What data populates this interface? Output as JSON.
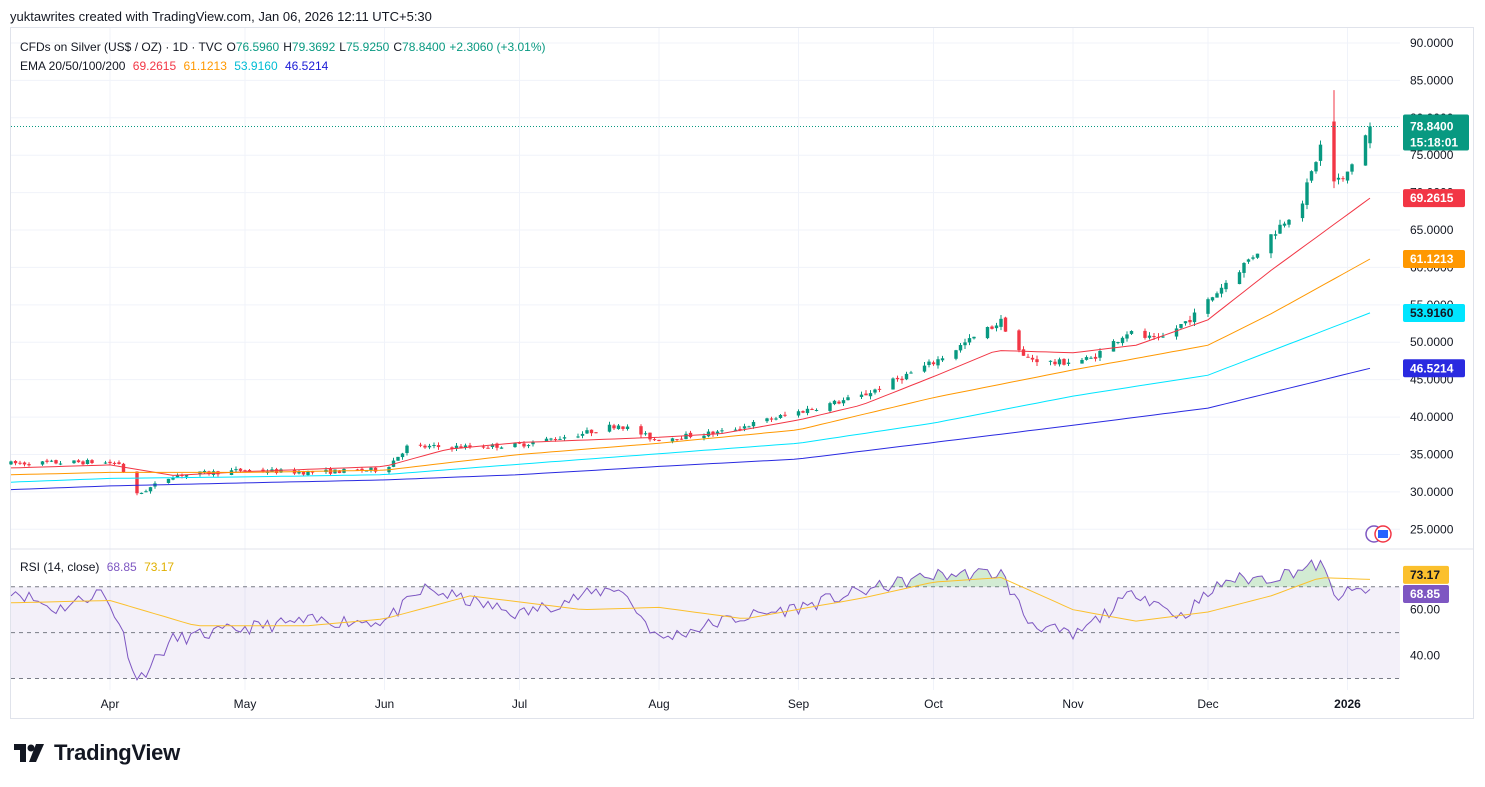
{
  "header": {
    "attribution": "yuktawrites created with TradingView.com, Jan 06, 2026 12:11 UTC+5:30"
  },
  "legend": {
    "symbol": "CFDs on Silver (US$ / OZ) · 1D · TVC",
    "open_label": "O",
    "open": "76.5960",
    "high_label": "H",
    "high": "79.3692",
    "low_label": "L",
    "low": "75.9250",
    "close_label": "C",
    "close": "78.8400",
    "change": "+2.3060 (+3.01%)",
    "ema_label": "EMA 20/50/100/200",
    "ema20": "69.2615",
    "ema50": "61.1213",
    "ema100": "53.9160",
    "ema200": "46.5214"
  },
  "rsi_legend": {
    "label": "RSI (14, close)",
    "rsi": "68.85",
    "rsi_ma": "73.17"
  },
  "price_badge": {
    "price": "78.8400",
    "countdown": "15:18:01"
  },
  "footer": {
    "brand": "TradingView"
  },
  "colors": {
    "up": "#089981",
    "down": "#f23645",
    "ema20": "#f23645",
    "ema50": "#ff9800",
    "ema100": "#00e5ff",
    "ema200": "#2a2ae0",
    "rsi": "#7e57c2",
    "rsi_ma": "#fbc02d"
  },
  "chart_data": [
    {
      "type": "candlestick",
      "title": "CFDs on Silver (US$ / OZ) · 1D · TVC",
      "x_ticks": [
        "Apr",
        "May",
        "Jun",
        "Jul",
        "Aug",
        "Sep",
        "Oct",
        "Nov",
        "Dec",
        "2026"
      ],
      "y_ticks": [
        "25.0000",
        "30.0000",
        "35.0000",
        "40.0000",
        "45.0000",
        "50.0000",
        "55.0000",
        "60.0000",
        "65.0000",
        "70.0000",
        "75.0000",
        "80.0000",
        "85.0000",
        "90.0000"
      ],
      "ylim": [
        22.5,
        92
      ],
      "grid": true,
      "series": [
        {
          "name": "EMA 20",
          "key_dates": [
            "2025-03-10",
            "2025-04-01",
            "2025-04-15",
            "2025-05-01",
            "2025-06-01",
            "2025-06-15",
            "2025-07-01",
            "2025-08-01",
            "2025-08-15",
            "2025-09-01",
            "2025-09-15",
            "2025-10-01",
            "2025-10-15",
            "2025-11-01",
            "2025-11-15",
            "2025-12-01",
            "2025-12-15",
            "2026-01-06"
          ],
          "values": [
            33.2,
            33.6,
            32.2,
            32.7,
            33.4,
            35.7,
            36.6,
            37.3,
            37.8,
            39.6,
            41.6,
            45.4,
            48.9,
            48.6,
            49.6,
            53.0,
            59.6,
            69.26
          ]
        },
        {
          "name": "EMA 50",
          "key_dates": [
            "2025-03-10",
            "2025-04-01",
            "2025-05-01",
            "2025-06-01",
            "2025-07-01",
            "2025-08-01",
            "2025-09-01",
            "2025-10-01",
            "2025-11-01",
            "2025-12-01",
            "2025-12-15",
            "2026-01-06"
          ],
          "values": [
            32.3,
            32.6,
            32.6,
            32.9,
            35.0,
            36.5,
            38.3,
            42.6,
            46.3,
            49.6,
            53.8,
            61.12
          ]
        },
        {
          "name": "EMA 100",
          "key_dates": [
            "2025-03-10",
            "2025-04-01",
            "2025-05-01",
            "2025-06-01",
            "2025-07-01",
            "2025-08-01",
            "2025-09-01",
            "2025-10-01",
            "2025-11-01",
            "2025-12-01",
            "2026-01-06"
          ],
          "values": [
            31.3,
            31.8,
            32.0,
            32.3,
            33.7,
            35.1,
            36.5,
            39.2,
            42.8,
            45.6,
            53.92
          ]
        },
        {
          "name": "EMA 200",
          "key_dates": [
            "2025-03-10",
            "2025-04-01",
            "2025-05-01",
            "2025-06-01",
            "2025-07-01",
            "2025-08-01",
            "2025-09-01",
            "2025-10-01",
            "2025-11-01",
            "2025-12-01",
            "2026-01-06"
          ],
          "values": [
            30.3,
            30.8,
            31.2,
            31.6,
            32.3,
            33.4,
            34.4,
            36.6,
            38.9,
            41.2,
            46.52
          ]
        }
      ],
      "price_path": {
        "key_dates": [
          "2025-03-10",
          "2025-03-28",
          "2025-04-03",
          "2025-04-07",
          "2025-04-15",
          "2025-05-01",
          "2025-05-15",
          "2025-06-01",
          "2025-06-06",
          "2025-06-20",
          "2025-07-01",
          "2025-07-15",
          "2025-07-23",
          "2025-07-31",
          "2025-08-15",
          "2025-09-01",
          "2025-09-15",
          "2025-10-01",
          "2025-10-16",
          "2025-10-21",
          "2025-10-28",
          "2025-11-05",
          "2025-11-13",
          "2025-11-20",
          "2025-11-28",
          "2025-12-05",
          "2025-12-12",
          "2025-12-22",
          "2025-12-26",
          "2025-12-29",
          "2025-12-31",
          "2026-01-06"
        ],
        "values": [
          33.8,
          34.0,
          33.8,
          29.6,
          32.2,
          32.9,
          32.6,
          33.0,
          36.0,
          36.0,
          36.3,
          37.8,
          39.0,
          37.0,
          38.0,
          40.7,
          42.8,
          47.3,
          52.8,
          48.0,
          47.2,
          47.8,
          51.3,
          50.2,
          53.6,
          58.0,
          62.2,
          69.0,
          76.2,
          72.0,
          71.5,
          78.84
        ]
      },
      "last": {
        "open": 76.596,
        "high": 79.3692,
        "low": 75.925,
        "close": 78.84
      }
    },
    {
      "type": "line",
      "title": "RSI (14, close)",
      "y_ticks": [
        "40.00",
        "60.00"
      ],
      "ylim": [
        25,
        86
      ],
      "bands": [
        30,
        50,
        70
      ],
      "series": [
        {
          "name": "RSI",
          "key_dates": [
            "2025-03-10",
            "2025-03-20",
            "2025-03-30",
            "2025-04-03",
            "2025-04-07",
            "2025-04-15",
            "2025-05-01",
            "2025-05-15",
            "2025-06-01",
            "2025-06-10",
            "2025-07-01",
            "2025-07-15",
            "2025-07-23",
            "2025-08-01",
            "2025-08-15",
            "2025-09-01",
            "2025-09-15",
            "2025-10-01",
            "2025-10-16",
            "2025-10-22",
            "2025-11-01",
            "2025-11-15",
            "2025-11-25",
            "2025-12-05",
            "2025-12-15",
            "2025-12-26",
            "2025-12-29",
            "2026-01-06"
          ],
          "values": [
            69,
            60,
            68,
            55,
            29,
            47,
            52,
            55,
            55,
            69,
            58,
            66,
            70,
            47,
            55,
            61,
            68,
            75,
            76,
            55,
            48,
            68,
            57,
            73,
            74,
            80,
            66,
            68.85
          ]
        },
        {
          "name": "RSI MA",
          "key_dates": [
            "2025-03-10",
            "2025-04-01",
            "2025-04-20",
            "2025-05-15",
            "2025-06-01",
            "2025-06-20",
            "2025-07-15",
            "2025-08-01",
            "2025-08-20",
            "2025-09-15",
            "2025-10-01",
            "2025-10-16",
            "2025-11-01",
            "2025-11-15",
            "2025-12-01",
            "2025-12-15",
            "2025-12-26",
            "2026-01-06"
          ],
          "values": [
            63,
            64,
            53,
            53,
            56,
            66,
            60,
            61,
            56,
            65,
            72,
            74,
            60,
            55,
            59,
            66,
            74,
            73.17
          ]
        }
      ]
    }
  ]
}
